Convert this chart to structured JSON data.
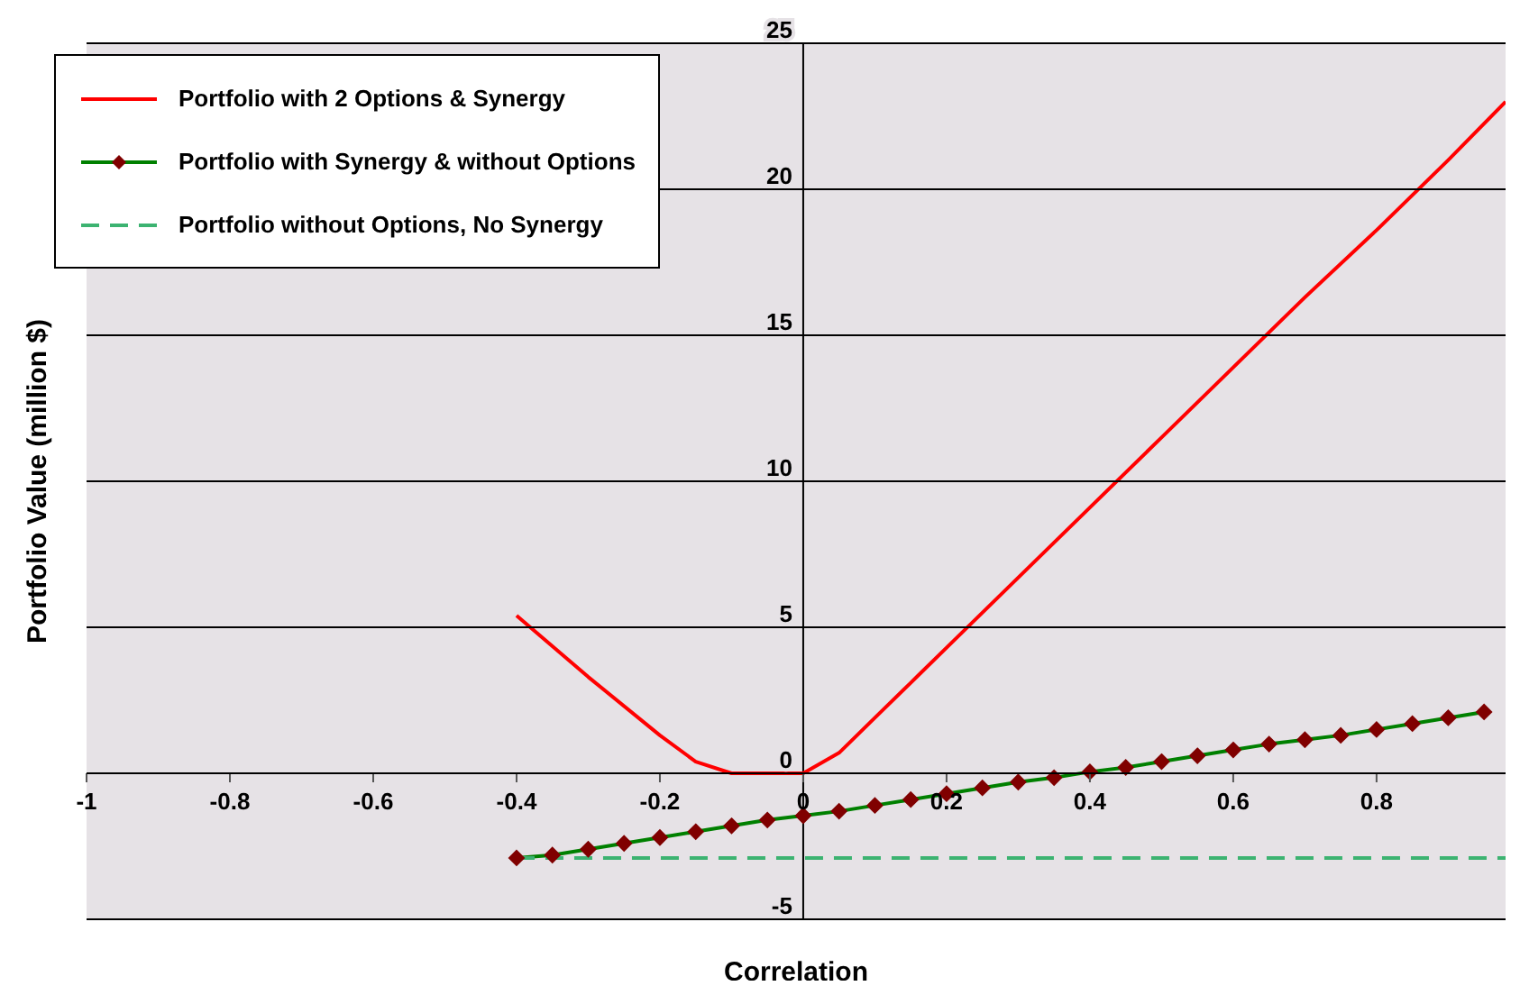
{
  "chart_data": {
    "type": "line",
    "xlabel": "Correlation",
    "ylabel": "Portfolio Value (million $)",
    "xlim": [
      -1,
      0.98
    ],
    "xticks": [
      -1,
      -0.8,
      -0.6,
      -0.4,
      -0.2,
      0,
      0.2,
      0.4,
      0.6,
      0.8
    ],
    "ylim": [
      -5,
      25
    ],
    "yticks": [
      -5,
      0,
      5,
      10,
      15,
      20,
      25
    ],
    "grid": "y",
    "legend": "top left",
    "series": [
      {
        "name": "Portfolio with 2 Options & Synergy",
        "color": "#ff0000",
        "marker": "none",
        "line_style": "solid",
        "x": [
          -0.4,
          -0.3,
          -0.2,
          -0.15,
          -0.1,
          -0.05,
          0,
          0.05,
          0.1,
          0.15,
          0.2,
          0.3,
          0.4,
          0.5,
          0.6,
          0.7,
          0.8,
          0.9,
          0.98
        ],
        "values": [
          5.4,
          3.3,
          1.3,
          0.4,
          0,
          0,
          0,
          0.7,
          1.9,
          3.1,
          4.3,
          6.7,
          9.1,
          11.5,
          13.9,
          16.3,
          18.6,
          21.0,
          23.0
        ]
      },
      {
        "name": "Portfolio with Synergy & without Options",
        "color": "#008000",
        "marker": "diamond",
        "line_style": "solid",
        "x": [
          -0.4,
          -0.35,
          -0.3,
          -0.25,
          -0.2,
          -0.15,
          -0.1,
          -0.05,
          0,
          0.05,
          0.1,
          0.15,
          0.2,
          0.25,
          0.3,
          0.35,
          0.4,
          0.45,
          0.5,
          0.55,
          0.6,
          0.65,
          0.7,
          0.75,
          0.8,
          0.85,
          0.9,
          0.95
        ],
        "values": [
          -2.9,
          -2.8,
          -2.6,
          -2.4,
          -2.2,
          -2.0,
          -1.8,
          -1.6,
          -1.45,
          -1.3,
          -1.1,
          -0.9,
          -0.7,
          -0.5,
          -0.3,
          -0.15,
          0.05,
          0.2,
          0.4,
          0.6,
          0.8,
          1.0,
          1.15,
          1.3,
          1.5,
          1.7,
          1.9,
          2.1
        ]
      },
      {
        "name": "Portfolio without Options, No Synergy",
        "color": "#3cb371",
        "marker": "none",
        "line_style": "dashed",
        "x": [
          -0.4,
          0.98
        ],
        "values": [
          -2.9,
          -2.9
        ]
      }
    ]
  }
}
